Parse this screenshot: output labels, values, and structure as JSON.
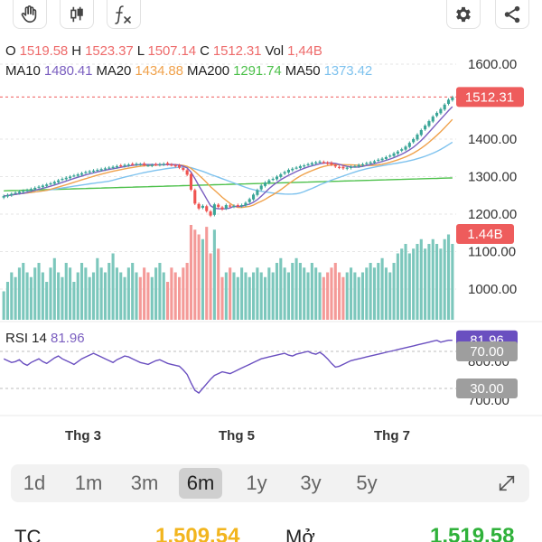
{
  "toolbar": {
    "buttons": [
      {
        "name": "hand-tool",
        "icon": "hand-icon"
      },
      {
        "name": "candle-type",
        "icon": "candlestick-icon"
      },
      {
        "name": "indicators",
        "icon": "function-icon"
      },
      {
        "name": "settings",
        "icon": "gear-icon"
      },
      {
        "name": "share",
        "icon": "share-icon"
      }
    ]
  },
  "ohlc": {
    "o_label": "O",
    "o": "1519.58",
    "h_label": "H",
    "h": "1523.37",
    "l_label": "L",
    "l": "1507.14",
    "c_label": "C",
    "c": "1512.31",
    "vol_label": "Vol",
    "vol": "1,44B"
  },
  "ma": {
    "ma10_label": "MA10",
    "ma10": "1480.41",
    "ma20_label": "MA20",
    "ma20": "1434.88",
    "ma200_label": "MA200",
    "ma200": "1291.74",
    "ma50_label": "MA50",
    "ma50": "1373.42"
  },
  "colors": {
    "up": "#3aa597",
    "down": "#ef5350",
    "ma10": "#7b5fc0",
    "ma20": "#f0a24c",
    "ma50": "#7ec2ee",
    "ma200": "#4cc04a",
    "rsi": "#6a4fc0",
    "price_tag": "#ee5c5c",
    "rsi_tag": "#6a4fc0",
    "level_tag": "#9e9e9e"
  },
  "chart_data": {
    "type": "candlestick",
    "price_axis": {
      "ticks": [
        1600,
        1400,
        1300,
        1200,
        1100,
        1000
      ],
      "tick_labels": [
        "1600.00",
        "1400.00",
        "1300.00",
        "1200.00",
        "1100.00",
        "1000.00"
      ]
    },
    "rsi_axis": {
      "ticks": [
        800,
        700
      ],
      "tick_labels": [
        "800.00",
        "700.00"
      ]
    },
    "x_labels": [
      "Thg 3",
      "Thg 5",
      "Thg 7"
    ],
    "last_price": "1512.31",
    "last_volume": "1.44B",
    "rsi_value": "81.96",
    "rsi_levels": [
      "70.00",
      "30.00"
    ],
    "close": [
      1248,
      1251,
      1254,
      1257,
      1260,
      1262,
      1264,
      1267,
      1270,
      1273,
      1276,
      1279,
      1282,
      1286,
      1290,
      1294,
      1297,
      1300,
      1303,
      1306,
      1309,
      1312,
      1314,
      1316,
      1318,
      1320,
      1322,
      1324,
      1326,
      1328,
      1329,
      1331,
      1332,
      1333,
      1334,
      1333,
      1331,
      1330,
      1331,
      1332,
      1333,
      1334,
      1333,
      1331,
      1328,
      1324,
      1318,
      1305,
      1265,
      1228,
      1215,
      1222,
      1208,
      1196,
      1226,
      1219,
      1213,
      1224,
      1221,
      1222,
      1222,
      1224,
      1230,
      1240,
      1252,
      1264,
      1276,
      1284,
      1290,
      1294,
      1300,
      1306,
      1312,
      1318,
      1321,
      1324,
      1328,
      1330,
      1333,
      1336,
      1338,
      1340,
      1338,
      1335,
      1332,
      1327,
      1324,
      1322,
      1324,
      1326,
      1328,
      1331,
      1333,
      1336,
      1338,
      1341,
      1345,
      1348,
      1352,
      1356,
      1362,
      1367,
      1373,
      1380,
      1390,
      1400,
      1412,
      1424,
      1436,
      1448,
      1460,
      1470,
      1480,
      1492,
      1505,
      1512
    ],
    "volume_rel": [
      0.3,
      0.4,
      0.5,
      0.45,
      0.55,
      0.6,
      0.5,
      0.45,
      0.55,
      0.6,
      0.5,
      0.4,
      0.55,
      0.65,
      0.5,
      0.45,
      0.6,
      0.55,
      0.4,
      0.5,
      0.6,
      0.55,
      0.45,
      0.5,
      0.65,
      0.55,
      0.5,
      0.6,
      0.7,
      0.55,
      0.5,
      0.45,
      0.55,
      0.6,
      0.5,
      0.45,
      0.55,
      0.5,
      0.45,
      0.55,
      0.6,
      0.5,
      0.4,
      0.55,
      0.5,
      0.45,
      0.55,
      0.6,
      1.0,
      0.95,
      0.9,
      0.85,
      0.98,
      0.7,
      0.95,
      0.75,
      0.45,
      0.5,
      0.55,
      0.5,
      0.45,
      0.55,
      0.5,
      0.45,
      0.5,
      0.55,
      0.5,
      0.45,
      0.55,
      0.5,
      0.6,
      0.65,
      0.55,
      0.5,
      0.6,
      0.65,
      0.6,
      0.55,
      0.5,
      0.6,
      0.55,
      0.5,
      0.45,
      0.5,
      0.55,
      0.6,
      0.5,
      0.45,
      0.5,
      0.55,
      0.5,
      0.45,
      0.5,
      0.55,
      0.6,
      0.55,
      0.6,
      0.65,
      0.55,
      0.5,
      0.6,
      0.7,
      0.75,
      0.8,
      0.7,
      0.75,
      0.8,
      0.85,
      0.75,
      0.8,
      0.85,
      0.8,
      0.75,
      0.85,
      0.9,
      0.8
    ],
    "rsi": [
      62,
      60,
      58,
      59,
      61,
      57,
      55,
      58,
      60,
      62,
      59,
      57,
      60,
      63,
      65,
      62,
      60,
      58,
      56,
      59,
      62,
      64,
      66,
      68,
      66,
      64,
      62,
      60,
      58,
      61,
      63,
      65,
      64,
      62,
      60,
      58,
      57,
      56,
      58,
      60,
      61,
      59,
      57,
      56,
      55,
      54,
      50,
      45,
      36,
      28,
      25,
      30,
      35,
      40,
      44,
      46,
      48,
      47,
      46,
      48,
      50,
      52,
      54,
      56,
      58,
      60,
      62,
      63,
      64,
      65,
      66,
      67,
      68,
      66,
      65,
      67,
      68,
      69,
      70,
      68,
      67,
      69,
      66,
      62,
      57,
      53,
      54,
      56,
      58,
      60,
      61,
      62,
      63,
      64,
      65,
      66,
      67,
      68,
      69,
      70,
      71,
      72,
      73,
      74,
      75,
      76,
      77,
      78,
      79,
      80,
      81,
      82,
      80,
      81,
      82,
      82
    ]
  },
  "ranges": [
    "1d",
    "1m",
    "3m",
    "6m",
    "1y",
    "3y",
    "5y"
  ],
  "active_range": "6m",
  "bottom": {
    "tc_label": "TC",
    "tc_value": "1,509.54",
    "open_label": "Mở",
    "open_value": "1,519.58"
  }
}
